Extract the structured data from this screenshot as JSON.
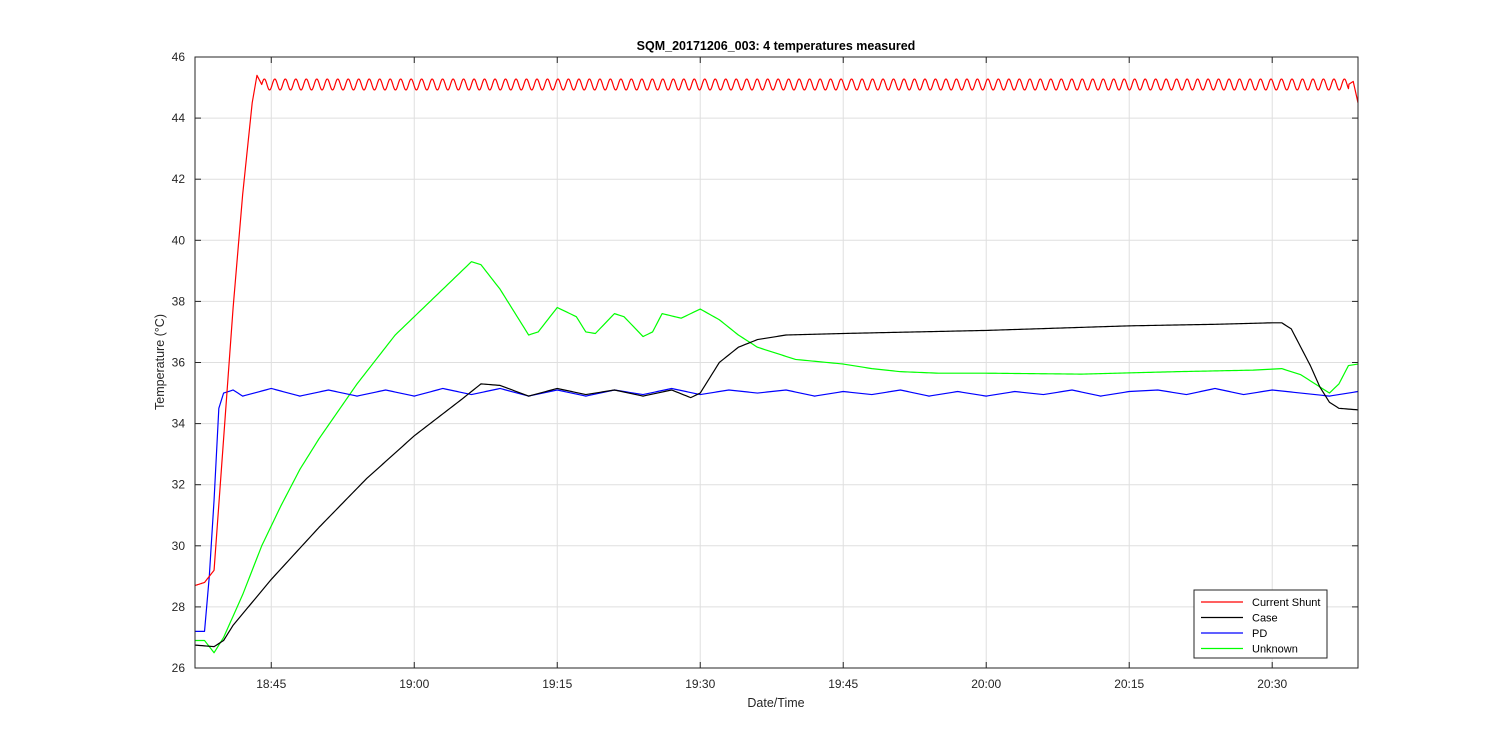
{
  "chart_data": {
    "type": "line",
    "title": "SQM_20171206_003: 4 temperatures measured",
    "xlabel": "Date/Time",
    "ylabel": "Temperature (°C)",
    "xlim": [
      "18:37",
      "20:39"
    ],
    "ylim": [
      26,
      46
    ],
    "x_ticks": [
      "18:45",
      "19:00",
      "19:15",
      "19:30",
      "19:45",
      "20:00",
      "20:15",
      "20:30"
    ],
    "y_ticks": [
      26,
      28,
      30,
      32,
      34,
      36,
      38,
      40,
      42,
      44,
      46
    ],
    "grid": true,
    "legend_position": "bottom-right",
    "series": [
      {
        "name": "Current Shunt",
        "color": "#ff0000",
        "oscillation": {
          "amplitude": 0.18,
          "period_min": 1.1,
          "start": "18:44",
          "end": "20:38"
        },
        "points": [
          {
            "x": "18:37",
            "y": 28.7
          },
          {
            "x": "18:38",
            "y": 28.8
          },
          {
            "x": "18:39",
            "y": 29.2
          },
          {
            "x": "18:40",
            "y": 33.5
          },
          {
            "x": "18:41",
            "y": 37.8
          },
          {
            "x": "18:42",
            "y": 41.5
          },
          {
            "x": "18:43",
            "y": 44.5
          },
          {
            "x": "18:43.5",
            "y": 45.4
          },
          {
            "x": "18:44",
            "y": 45.1
          },
          {
            "x": "20:38",
            "y": 45.1
          },
          {
            "x": "20:38.5",
            "y": 45.2
          },
          {
            "x": "20:39",
            "y": 44.5
          }
        ]
      },
      {
        "name": "Case",
        "color": "#000000",
        "points": [
          {
            "x": "18:37",
            "y": 26.75
          },
          {
            "x": "18:39",
            "y": 26.7
          },
          {
            "x": "18:40",
            "y": 26.9
          },
          {
            "x": "18:41",
            "y": 27.4
          },
          {
            "x": "18:45",
            "y": 28.9
          },
          {
            "x": "18:50",
            "y": 30.6
          },
          {
            "x": "18:55",
            "y": 32.2
          },
          {
            "x": "19:00",
            "y": 33.6
          },
          {
            "x": "19:05",
            "y": 34.8
          },
          {
            "x": "19:07",
            "y": 35.3
          },
          {
            "x": "19:09",
            "y": 35.25
          },
          {
            "x": "19:12",
            "y": 34.9
          },
          {
            "x": "19:15",
            "y": 35.15
          },
          {
            "x": "19:18",
            "y": 34.95
          },
          {
            "x": "19:21",
            "y": 35.1
          },
          {
            "x": "19:24",
            "y": 34.9
          },
          {
            "x": "19:27",
            "y": 35.1
          },
          {
            "x": "19:29",
            "y": 34.85
          },
          {
            "x": "19:30",
            "y": 35.0
          },
          {
            "x": "19:31",
            "y": 35.5
          },
          {
            "x": "19:32",
            "y": 36.0
          },
          {
            "x": "19:34",
            "y": 36.5
          },
          {
            "x": "19:36",
            "y": 36.75
          },
          {
            "x": "19:39",
            "y": 36.9
          },
          {
            "x": "19:45",
            "y": 36.95
          },
          {
            "x": "20:00",
            "y": 37.05
          },
          {
            "x": "20:15",
            "y": 37.2
          },
          {
            "x": "20:24",
            "y": 37.25
          },
          {
            "x": "20:30",
            "y": 37.3
          },
          {
            "x": "20:31",
            "y": 37.3
          },
          {
            "x": "20:32",
            "y": 37.1
          },
          {
            "x": "20:34",
            "y": 35.9
          },
          {
            "x": "20:35",
            "y": 35.2
          },
          {
            "x": "20:36",
            "y": 34.7
          },
          {
            "x": "20:37",
            "y": 34.5
          },
          {
            "x": "20:39",
            "y": 34.45
          }
        ]
      },
      {
        "name": "PD",
        "color": "#0000ff",
        "points": [
          {
            "x": "18:37",
            "y": 27.2
          },
          {
            "x": "18:38",
            "y": 27.2
          },
          {
            "x": "18:38.5",
            "y": 29.0
          },
          {
            "x": "18:39",
            "y": 31.5
          },
          {
            "x": "18:39.5",
            "y": 34.5
          },
          {
            "x": "18:40",
            "y": 35.0
          },
          {
            "x": "18:41",
            "y": 35.1
          },
          {
            "x": "18:42",
            "y": 34.9
          },
          {
            "x": "18:45",
            "y": 35.15
          },
          {
            "x": "18:48",
            "y": 34.9
          },
          {
            "x": "18:51",
            "y": 35.1
          },
          {
            "x": "18:54",
            "y": 34.9
          },
          {
            "x": "18:57",
            "y": 35.1
          },
          {
            "x": "19:00",
            "y": 34.9
          },
          {
            "x": "19:03",
            "y": 35.15
          },
          {
            "x": "19:06",
            "y": 34.95
          },
          {
            "x": "19:09",
            "y": 35.15
          },
          {
            "x": "19:12",
            "y": 34.9
          },
          {
            "x": "19:15",
            "y": 35.1
          },
          {
            "x": "19:18",
            "y": 34.9
          },
          {
            "x": "19:21",
            "y": 35.1
          },
          {
            "x": "19:24",
            "y": 34.95
          },
          {
            "x": "19:27",
            "y": 35.15
          },
          {
            "x": "19:30",
            "y": 34.95
          },
          {
            "x": "19:33",
            "y": 35.1
          },
          {
            "x": "19:36",
            "y": 35.0
          },
          {
            "x": "19:39",
            "y": 35.1
          },
          {
            "x": "19:42",
            "y": 34.9
          },
          {
            "x": "19:45",
            "y": 35.05
          },
          {
            "x": "19:48",
            "y": 34.95
          },
          {
            "x": "19:51",
            "y": 35.1
          },
          {
            "x": "19:54",
            "y": 34.9
          },
          {
            "x": "19:57",
            "y": 35.05
          },
          {
            "x": "20:00",
            "y": 34.9
          },
          {
            "x": "20:03",
            "y": 35.05
          },
          {
            "x": "20:06",
            "y": 34.95
          },
          {
            "x": "20:09",
            "y": 35.1
          },
          {
            "x": "20:12",
            "y": 34.9
          },
          {
            "x": "20:15",
            "y": 35.05
          },
          {
            "x": "20:18",
            "y": 35.1
          },
          {
            "x": "20:21",
            "y": 34.95
          },
          {
            "x": "20:24",
            "y": 35.15
          },
          {
            "x": "20:27",
            "y": 34.95
          },
          {
            "x": "20:30",
            "y": 35.1
          },
          {
            "x": "20:33",
            "y": 35.0
          },
          {
            "x": "20:36",
            "y": 34.9
          },
          {
            "x": "20:39",
            "y": 35.05
          }
        ]
      },
      {
        "name": "Unknown",
        "color": "#00ff00",
        "points": [
          {
            "x": "18:37",
            "y": 26.9
          },
          {
            "x": "18:38",
            "y": 26.9
          },
          {
            "x": "18:39",
            "y": 26.5
          },
          {
            "x": "18:40",
            "y": 27.0
          },
          {
            "x": "18:42",
            "y": 28.4
          },
          {
            "x": "18:44",
            "y": 30.0
          },
          {
            "x": "18:46",
            "y": 31.3
          },
          {
            "x": "18:48",
            "y": 32.5
          },
          {
            "x": "18:50",
            "y": 33.5
          },
          {
            "x": "18:52",
            "y": 34.4
          },
          {
            "x": "18:54",
            "y": 35.3
          },
          {
            "x": "18:56",
            "y": 36.1
          },
          {
            "x": "18:58",
            "y": 36.9
          },
          {
            "x": "19:00",
            "y": 37.5
          },
          {
            "x": "19:02",
            "y": 38.1
          },
          {
            "x": "19:04",
            "y": 38.7
          },
          {
            "x": "19:06",
            "y": 39.3
          },
          {
            "x": "19:07",
            "y": 39.2
          },
          {
            "x": "19:09",
            "y": 38.4
          },
          {
            "x": "19:11",
            "y": 37.4
          },
          {
            "x": "19:12",
            "y": 36.9
          },
          {
            "x": "19:13",
            "y": 37.0
          },
          {
            "x": "19:15",
            "y": 37.8
          },
          {
            "x": "19:17",
            "y": 37.5
          },
          {
            "x": "19:18",
            "y": 37.0
          },
          {
            "x": "19:19",
            "y": 36.95
          },
          {
            "x": "19:21",
            "y": 37.6
          },
          {
            "x": "19:22",
            "y": 37.5
          },
          {
            "x": "19:24",
            "y": 36.85
          },
          {
            "x": "19:25",
            "y": 37.0
          },
          {
            "x": "19:26",
            "y": 37.6
          },
          {
            "x": "19:28",
            "y": 37.45
          },
          {
            "x": "19:29",
            "y": 37.6
          },
          {
            "x": "19:30",
            "y": 37.75
          },
          {
            "x": "19:32",
            "y": 37.4
          },
          {
            "x": "19:34",
            "y": 36.9
          },
          {
            "x": "19:36",
            "y": 36.5
          },
          {
            "x": "19:38",
            "y": 36.3
          },
          {
            "x": "19:40",
            "y": 36.1
          },
          {
            "x": "19:45",
            "y": 35.95
          },
          {
            "x": "19:48",
            "y": 35.8
          },
          {
            "x": "19:51",
            "y": 35.7
          },
          {
            "x": "19:55",
            "y": 35.65
          },
          {
            "x": "20:00",
            "y": 35.65
          },
          {
            "x": "20:10",
            "y": 35.62
          },
          {
            "x": "20:20",
            "y": 35.7
          },
          {
            "x": "20:28",
            "y": 35.75
          },
          {
            "x": "20:31",
            "y": 35.8
          },
          {
            "x": "20:33",
            "y": 35.6
          },
          {
            "x": "20:35",
            "y": 35.2
          },
          {
            "x": "20:36",
            "y": 35.0
          },
          {
            "x": "20:37",
            "y": 35.3
          },
          {
            "x": "20:38",
            "y": 35.9
          },
          {
            "x": "20:39",
            "y": 35.95
          }
        ]
      }
    ]
  }
}
